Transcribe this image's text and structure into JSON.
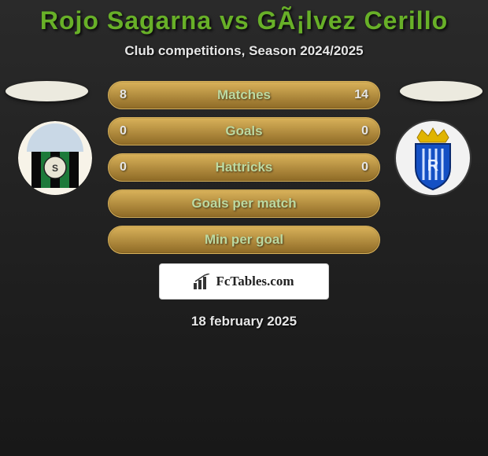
{
  "title": "Rojo Sagarna vs GÃ¡lvez Cerillo",
  "subtitle": "Club competitions, Season 2024/2025",
  "date": "18 february 2025",
  "colors": {
    "accent_dark": "#8e6a26",
    "accent_light": "#d9b25a",
    "label_text": "#bcd9a1",
    "value_text": "#e6e6e6",
    "ellipse": "#eceadf"
  },
  "rows": [
    {
      "label": "Matches",
      "left": "8",
      "right": "14"
    },
    {
      "label": "Goals",
      "left": "0",
      "right": "0"
    },
    {
      "label": "Hattricks",
      "left": "0",
      "right": "0"
    },
    {
      "label": "Goals per match",
      "left": "",
      "right": ""
    },
    {
      "label": "Min per goal",
      "left": "",
      "right": ""
    }
  ],
  "branding": {
    "text": "FcTables.com"
  },
  "badge_left": {
    "bg": "#f7f3e8",
    "stripes": [
      "#0a0a0a",
      "#1d7a3a",
      "#0a0a0a",
      "#1d7a3a",
      "#0a0a0a"
    ]
  },
  "badge_right": {
    "bg": "#f2f2f2",
    "shield": "#1450c4",
    "crown": "#e0b400"
  }
}
